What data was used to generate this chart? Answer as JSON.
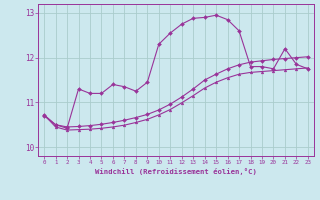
{
  "xlabel": "Windchill (Refroidissement éolien,°C)",
  "ylabel": "",
  "background_color": "#cce8ee",
  "grid_color": "#aacccc",
  "line_color": "#993399",
  "xlim": [
    -0.5,
    23.5
  ],
  "ylim": [
    9.8,
    13.2
  ],
  "yticks": [
    10,
    11,
    12,
    13
  ],
  "xticks": [
    0,
    1,
    2,
    3,
    4,
    5,
    6,
    7,
    8,
    9,
    10,
    11,
    12,
    13,
    14,
    15,
    16,
    17,
    18,
    19,
    20,
    21,
    22,
    23
  ],
  "series1_x": [
    0,
    1,
    2,
    3,
    4,
    5,
    6,
    7,
    8,
    9,
    10,
    11,
    12,
    13,
    14,
    15,
    16,
    17,
    18,
    19,
    20,
    21,
    22,
    23
  ],
  "series1_y": [
    10.7,
    10.5,
    10.42,
    11.3,
    11.2,
    11.2,
    11.4,
    11.35,
    11.25,
    11.45,
    12.3,
    12.55,
    12.75,
    12.88,
    12.9,
    12.95,
    12.85,
    12.6,
    11.8,
    11.8,
    11.75,
    12.2,
    11.85,
    11.75
  ],
  "series2_x": [
    0,
    1,
    2,
    3,
    4,
    5,
    6,
    7,
    8,
    9,
    10,
    11,
    12,
    13,
    14,
    15,
    16,
    17,
    18,
    19,
    20,
    21,
    22,
    23
  ],
  "series2_y": [
    10.72,
    10.5,
    10.45,
    10.46,
    10.48,
    10.51,
    10.55,
    10.6,
    10.66,
    10.73,
    10.83,
    10.96,
    11.12,
    11.3,
    11.5,
    11.63,
    11.75,
    11.84,
    11.9,
    11.93,
    11.96,
    11.98,
    12.0,
    12.02
  ],
  "series3_x": [
    0,
    1,
    2,
    3,
    4,
    5,
    6,
    7,
    8,
    9,
    10,
    11,
    12,
    13,
    14,
    15,
    16,
    17,
    18,
    19,
    20,
    21,
    22,
    23
  ],
  "series3_y": [
    10.72,
    10.45,
    10.38,
    10.39,
    10.4,
    10.42,
    10.45,
    10.49,
    10.55,
    10.62,
    10.72,
    10.84,
    10.99,
    11.15,
    11.32,
    11.45,
    11.55,
    11.63,
    11.67,
    11.69,
    11.71,
    11.73,
    11.75,
    11.77
  ]
}
